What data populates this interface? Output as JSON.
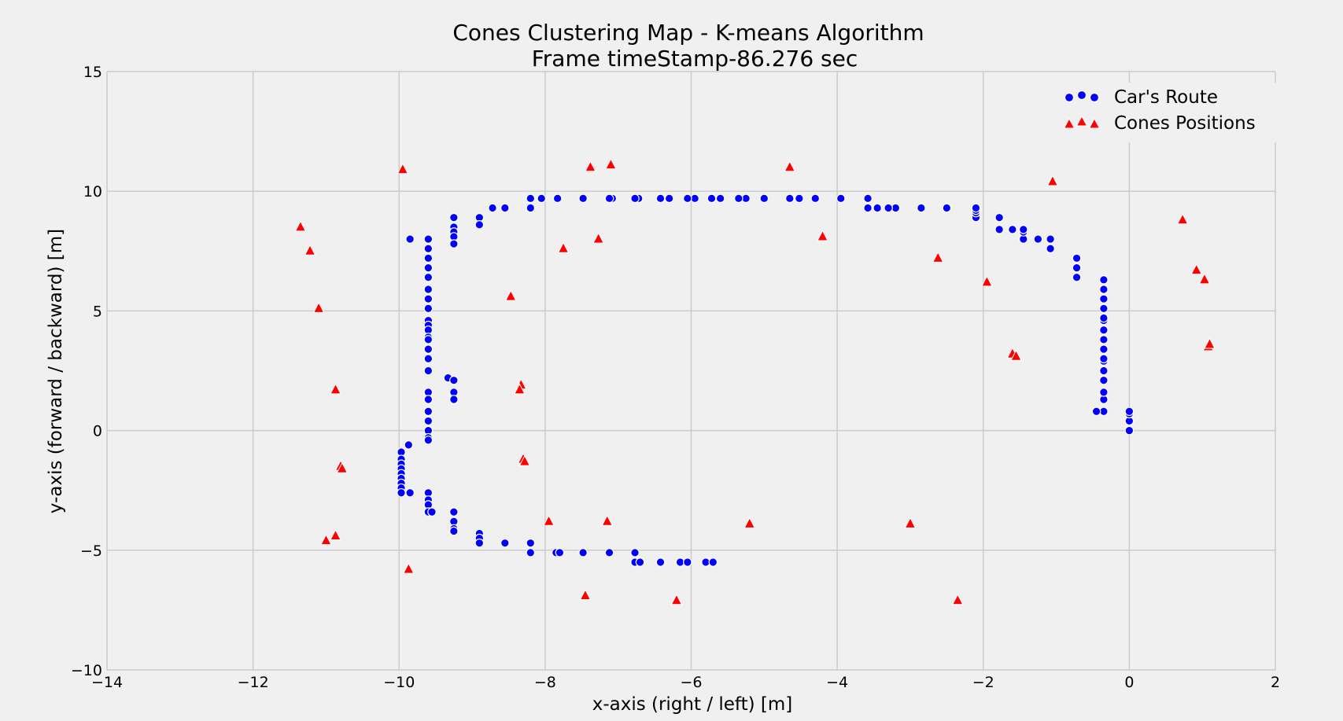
{
  "chart_data": {
    "type": "scatter",
    "title": "Cones Clustering Map - K-means Algorithm",
    "subtitle": "Frame timeStamp-86.276 sec",
    "xlabel": "x-axis (right / left) [m]",
    "ylabel": "y-axis (forward / backward) [m]",
    "xlim": [
      -14,
      2
    ],
    "ylim": [
      -10,
      15
    ],
    "xticks": [
      -14,
      -12,
      -10,
      -8,
      -6,
      -4,
      -2,
      0,
      2
    ],
    "xtick_labels": [
      "−14",
      "−12",
      "−10",
      "−8",
      "−6",
      "−4",
      "−2",
      "0",
      "2"
    ],
    "yticks": [
      -10,
      -5,
      0,
      5,
      10,
      15
    ],
    "ytick_labels": [
      "−10",
      "−5",
      "0",
      "5",
      "10",
      "15"
    ],
    "grid": true,
    "legend_position": "top-right",
    "series": [
      {
        "name": "Car's Route",
        "marker": "circle",
        "color": "#0000ff",
        "points": [
          [
            0.0,
            0.0
          ],
          [
            0.0,
            0.4
          ],
          [
            0.0,
            0.7
          ],
          [
            0.0,
            0.8
          ],
          [
            -0.35,
            0.8
          ],
          [
            -0.45,
            0.8
          ],
          [
            -0.35,
            1.3
          ],
          [
            -0.35,
            1.6
          ],
          [
            -0.35,
            2.1
          ],
          [
            -0.35,
            2.5
          ],
          [
            -0.35,
            2.9
          ],
          [
            -0.35,
            3.0
          ],
          [
            -0.35,
            3.4
          ],
          [
            -0.35,
            3.8
          ],
          [
            -0.35,
            4.2
          ],
          [
            -0.35,
            4.6
          ],
          [
            -0.35,
            4.7
          ],
          [
            -0.35,
            5.1
          ],
          [
            -0.35,
            5.5
          ],
          [
            -0.35,
            5.9
          ],
          [
            -0.35,
            6.3
          ],
          [
            -0.72,
            6.4
          ],
          [
            -0.72,
            6.8
          ],
          [
            -0.72,
            7.2
          ],
          [
            -1.08,
            7.6
          ],
          [
            -1.08,
            8.0
          ],
          [
            -1.25,
            8.0
          ],
          [
            -1.45,
            8.0
          ],
          [
            -1.45,
            8.3
          ],
          [
            -1.45,
            8.4
          ],
          [
            -1.6,
            8.4
          ],
          [
            -1.78,
            8.4
          ],
          [
            -1.78,
            8.9
          ],
          [
            -2.1,
            8.9
          ],
          [
            -2.1,
            9.1
          ],
          [
            -2.1,
            9.2
          ],
          [
            -2.1,
            9.3
          ],
          [
            -2.5,
            9.3
          ],
          [
            -2.85,
            9.3
          ],
          [
            -3.2,
            9.3
          ],
          [
            -3.3,
            9.3
          ],
          [
            -3.45,
            9.3
          ],
          [
            -3.58,
            9.3
          ],
          [
            -3.58,
            9.7
          ],
          [
            -3.95,
            9.7
          ],
          [
            -4.3,
            9.7
          ],
          [
            -4.52,
            9.7
          ],
          [
            -4.65,
            9.7
          ],
          [
            -5.0,
            9.7
          ],
          [
            -5.25,
            9.7
          ],
          [
            -5.35,
            9.7
          ],
          [
            -5.6,
            9.7
          ],
          [
            -5.72,
            9.7
          ],
          [
            -5.95,
            9.7
          ],
          [
            -6.05,
            9.7
          ],
          [
            -6.3,
            9.7
          ],
          [
            -6.42,
            9.7
          ],
          [
            -6.72,
            9.7
          ],
          [
            -6.77,
            9.7
          ],
          [
            -7.08,
            9.7
          ],
          [
            -7.12,
            9.7
          ],
          [
            -7.48,
            9.7
          ],
          [
            -7.83,
            9.7
          ],
          [
            -8.05,
            9.7
          ],
          [
            -8.2,
            9.7
          ],
          [
            -8.2,
            9.3
          ],
          [
            -8.55,
            9.3
          ],
          [
            -8.72,
            9.3
          ],
          [
            -8.9,
            8.9
          ],
          [
            -8.9,
            8.6
          ],
          [
            -9.25,
            8.9
          ],
          [
            -9.25,
            8.5
          ],
          [
            -9.25,
            8.3
          ],
          [
            -9.25,
            8.1
          ],
          [
            -9.25,
            7.8
          ],
          [
            -9.85,
            8.0
          ],
          [
            -9.6,
            8.0
          ],
          [
            -9.6,
            7.6
          ],
          [
            -9.6,
            7.2
          ],
          [
            -9.6,
            6.8
          ],
          [
            -9.6,
            6.4
          ],
          [
            -9.6,
            5.9
          ],
          [
            -9.6,
            5.5
          ],
          [
            -9.6,
            5.1
          ],
          [
            -9.6,
            4.6
          ],
          [
            -9.6,
            4.4
          ],
          [
            -9.6,
            4.2
          ],
          [
            -9.6,
            3.9
          ],
          [
            -9.6,
            3.8
          ],
          [
            -9.6,
            3.4
          ],
          [
            -9.6,
            3.0
          ],
          [
            -9.6,
            2.5
          ],
          [
            -9.6,
            1.6
          ],
          [
            -9.6,
            1.3
          ],
          [
            -9.6,
            0.8
          ],
          [
            -9.6,
            0.4
          ],
          [
            -9.6,
            0.0
          ],
          [
            -9.6,
            -0.3
          ],
          [
            -9.6,
            -0.4
          ],
          [
            -9.33,
            2.2
          ],
          [
            -9.25,
            2.1
          ],
          [
            -9.25,
            1.6
          ],
          [
            -9.25,
            1.3
          ],
          [
            -9.87,
            -0.6
          ],
          [
            -9.97,
            -0.9
          ],
          [
            -9.97,
            -1.2
          ],
          [
            -9.97,
            -1.4
          ],
          [
            -9.97,
            -1.6
          ],
          [
            -9.97,
            -1.8
          ],
          [
            -9.97,
            -2.0
          ],
          [
            -9.97,
            -2.2
          ],
          [
            -9.97,
            -2.4
          ],
          [
            -9.97,
            -2.6
          ],
          [
            -9.85,
            -2.6
          ],
          [
            -9.6,
            -2.6
          ],
          [
            -9.6,
            -2.9
          ],
          [
            -9.6,
            -3.1
          ],
          [
            -9.6,
            -3.4
          ],
          [
            -9.55,
            -3.4
          ],
          [
            -9.25,
            -3.4
          ],
          [
            -9.25,
            -3.8
          ],
          [
            -9.25,
            -4.1
          ],
          [
            -9.25,
            -4.2
          ],
          [
            -8.9,
            -4.3
          ],
          [
            -8.9,
            -4.5
          ],
          [
            -8.9,
            -4.7
          ],
          [
            -8.55,
            -4.7
          ],
          [
            -8.2,
            -4.7
          ],
          [
            -8.2,
            -5.1
          ],
          [
            -7.85,
            -5.1
          ],
          [
            -7.8,
            -5.1
          ],
          [
            -7.48,
            -5.1
          ],
          [
            -7.12,
            -5.1
          ],
          [
            -6.77,
            -5.1
          ],
          [
            -6.77,
            -5.5
          ],
          [
            -6.7,
            -5.5
          ],
          [
            -6.42,
            -5.5
          ],
          [
            -6.15,
            -5.5
          ],
          [
            -6.05,
            -5.5
          ],
          [
            -5.8,
            -5.5
          ],
          [
            -5.7,
            -5.5
          ]
        ]
      },
      {
        "name": "Cones Positions",
        "marker": "triangle",
        "color": "#ff0000",
        "points": [
          [
            -11.35,
            8.5
          ],
          [
            -11.22,
            7.5
          ],
          [
            -11.1,
            5.1
          ],
          [
            -10.87,
            1.7
          ],
          [
            -10.8,
            -1.5
          ],
          [
            -10.78,
            -1.6
          ],
          [
            -10.87,
            -4.4
          ],
          [
            -11.0,
            -4.6
          ],
          [
            -9.95,
            10.9
          ],
          [
            -9.87,
            -5.8
          ],
          [
            -8.47,
            5.6
          ],
          [
            -8.33,
            1.9
          ],
          [
            -8.35,
            1.7
          ],
          [
            -8.3,
            -1.2
          ],
          [
            -8.28,
            -1.3
          ],
          [
            -7.95,
            -3.8
          ],
          [
            -7.75,
            7.6
          ],
          [
            -7.38,
            11.0
          ],
          [
            -7.1,
            11.1
          ],
          [
            -7.27,
            8.0
          ],
          [
            -7.15,
            -3.8
          ],
          [
            -7.45,
            -6.9
          ],
          [
            -6.2,
            -7.1
          ],
          [
            -5.2,
            -3.9
          ],
          [
            -4.65,
            11.0
          ],
          [
            -4.2,
            8.1
          ],
          [
            -3.0,
            -3.9
          ],
          [
            -2.62,
            7.2
          ],
          [
            -2.35,
            -7.1
          ],
          [
            -1.95,
            6.2
          ],
          [
            -1.6,
            3.2
          ],
          [
            -1.55,
            3.1
          ],
          [
            -1.05,
            10.4
          ],
          [
            0.73,
            8.8
          ],
          [
            0.92,
            6.7
          ],
          [
            1.03,
            6.3
          ],
          [
            1.08,
            3.5
          ],
          [
            1.1,
            3.6
          ]
        ]
      }
    ]
  }
}
